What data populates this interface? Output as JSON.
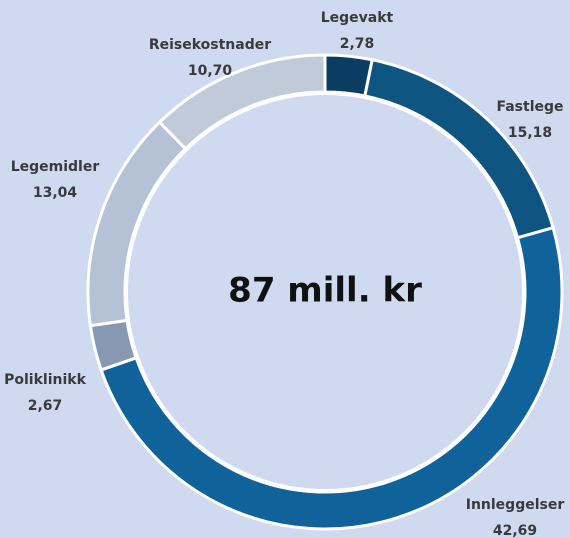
{
  "chart_data": {
    "type": "donut",
    "center_label": "87 mill. kr",
    "categories": [
      "Legevakt",
      "Fastlege",
      "Innleggelser",
      "Poliklinikk",
      "Legemidler",
      "Reisekostnader"
    ],
    "values": [
      2.78,
      15.18,
      42.69,
      2.67,
      13.04,
      10.7
    ],
    "value_labels": [
      "2,78",
      "15,18",
      "42,69",
      "2,67",
      "13,04",
      "10,70"
    ],
    "colors": [
      "#0b3d62",
      "#0f5582",
      "#10639a",
      "#8798b3",
      "#b5c1d5",
      "#c1cad8"
    ]
  }
}
